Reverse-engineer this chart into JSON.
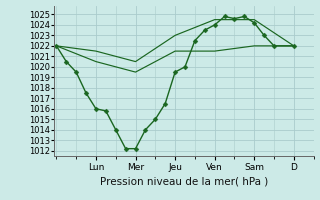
{
  "bg_color": "#cceae7",
  "grid_color": "#aacccc",
  "line_color": "#1a6620",
  "marker_color": "#1a6620",
  "xlabel": "Pression niveau de la mer( hPa )",
  "ylim": [
    1011.5,
    1025.8
  ],
  "yticks": [
    1012,
    1013,
    1014,
    1015,
    1016,
    1017,
    1018,
    1019,
    1020,
    1021,
    1022,
    1023,
    1024,
    1025
  ],
  "day_labels": [
    "Lun",
    "Mer",
    "Jeu",
    "Ven",
    "Sam",
    "D"
  ],
  "day_positions": [
    2.0,
    4.0,
    6.0,
    8.0,
    10.0,
    12.0
  ],
  "xlim": [
    -0.1,
    13.0
  ],
  "series1_x": [
    0,
    0.5,
    1.0,
    1.5,
    2.0,
    2.5,
    3.0,
    3.5,
    4.0,
    4.5,
    5.0,
    5.5,
    6.0,
    6.5,
    7.0,
    7.5,
    8.0,
    8.5,
    9.0,
    9.5,
    10.0,
    10.5,
    11.0,
    12.0
  ],
  "series1_y": [
    1022,
    1020.5,
    1019.5,
    1017.5,
    1016.0,
    1015.8,
    1014.0,
    1012.2,
    1012.2,
    1014.0,
    1015.0,
    1016.5,
    1019.5,
    1020.0,
    1022.5,
    1023.5,
    1024.0,
    1024.8,
    1024.6,
    1024.8,
    1024.2,
    1023.0,
    1022.0,
    1022.0
  ],
  "series2_x": [
    0,
    2,
    4,
    6,
    8,
    10,
    12
  ],
  "series2_y": [
    1022,
    1020.5,
    1019.5,
    1021.5,
    1021.5,
    1022.0,
    1022.0
  ],
  "series3_x": [
    0,
    2,
    4,
    6,
    8,
    10,
    12
  ],
  "series3_y": [
    1022,
    1021.5,
    1020.5,
    1023.0,
    1024.5,
    1024.5,
    1022.0
  ],
  "xtick_fontsize": 6.5,
  "ytick_fontsize": 6.0,
  "xlabel_fontsize": 7.5,
  "linewidth1": 1.0,
  "linewidth2": 0.85,
  "markersize": 2.5
}
